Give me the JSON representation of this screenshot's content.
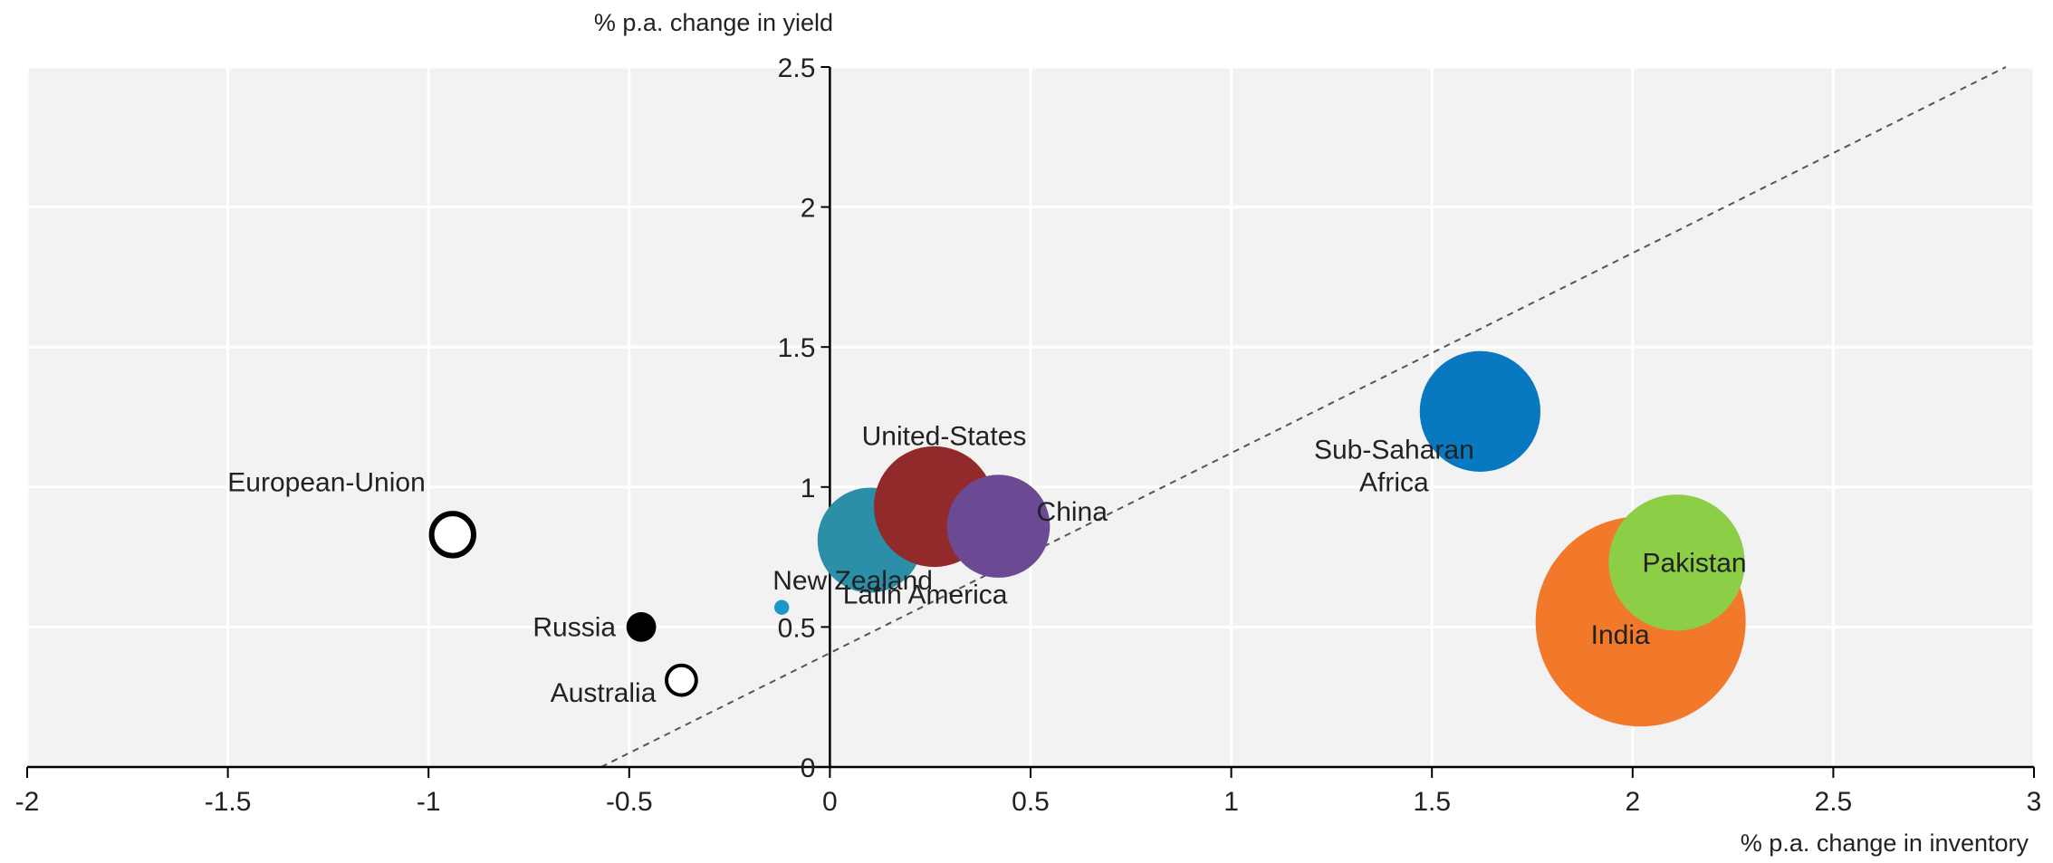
{
  "chart_data": {
    "type": "scatter",
    "subtype": "bubble",
    "xlabel": "% p.a. change in inventory",
    "ylabel": "% p.a. change in yield",
    "xlim": [
      -2,
      3
    ],
    "ylim": [
      0,
      2.5
    ],
    "x_ticks": [
      "-2",
      "-1.5",
      "-1",
      "-0.5",
      "0",
      "0.5",
      "1",
      "1.5",
      "2",
      "2.5",
      "3"
    ],
    "y_ticks": [
      "0",
      "0.5",
      "1",
      "1.5",
      "2",
      "2.5"
    ],
    "grid": "on",
    "plot_background": "#f2f2f2",
    "reference_line": {
      "style": "dashed",
      "points": [
        [
          -0.57,
          0
        ],
        [
          2.93,
          2.5
        ]
      ]
    },
    "series": [
      {
        "name": "European-Union",
        "x": -0.94,
        "y": 0.83,
        "size": 4,
        "color": "#000000",
        "style": "hollow"
      },
      {
        "name": "Russia",
        "x": -0.47,
        "y": 0.5,
        "size": 2,
        "color": "#000000",
        "style": "filled"
      },
      {
        "name": "Australia",
        "x": -0.37,
        "y": 0.31,
        "size": 2,
        "color": "#000000",
        "style": "hollow"
      },
      {
        "name": "New Zealand",
        "x": -0.12,
        "y": 0.57,
        "size": 0.5,
        "color": "#1b98c9",
        "style": "filled"
      },
      {
        "name": "Latin America",
        "x": 0.1,
        "y": 0.81,
        "size": 25,
        "color": "#2b8fa8",
        "style": "filled"
      },
      {
        "name": "United-States",
        "x": 0.26,
        "y": 0.93,
        "size": 33,
        "color": "#92292a",
        "style": "filled"
      },
      {
        "name": "China",
        "x": 0.42,
        "y": 0.86,
        "size": 24,
        "color": "#6b4a93",
        "style": "filled"
      },
      {
        "name": "Sub-Saharan\nAfrica",
        "x": 1.62,
        "y": 1.27,
        "size": 33,
        "color": "#0878c0",
        "style": "filled"
      },
      {
        "name": "India",
        "x": 2.02,
        "y": 0.52,
        "size": 100,
        "color": "#f2782a",
        "style": "filled"
      },
      {
        "name": "Pakistan",
        "x": 2.11,
        "y": 0.73,
        "size": 42,
        "color": "#8cce45",
        "style": "filled"
      }
    ]
  }
}
